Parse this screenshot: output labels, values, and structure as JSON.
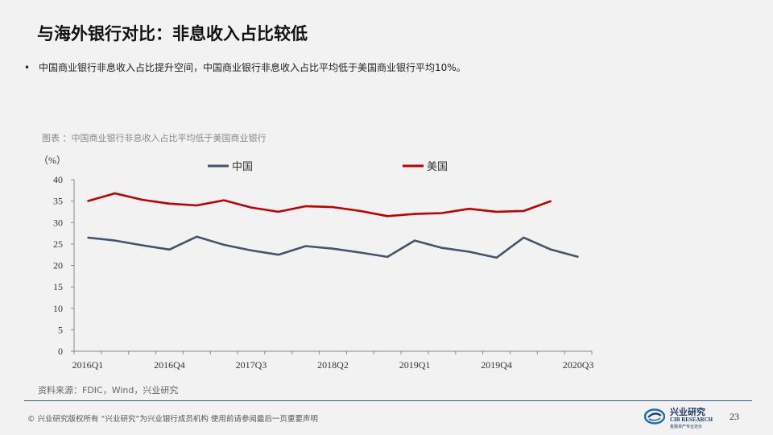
{
  "slide": {
    "title": "与海外银行对比：非息收入占比较低",
    "bullet": "中国商业银行非息收入占比提升空间，中国商业银行非息收入占比平均低于美国商业银行平均10%。",
    "chart_caption": "图表 ：中国商业银行非息收入占比平均低于美国商业银行",
    "source": "资料来源：FDIC，Wind，兴业研究",
    "footer": "©  兴业研究版权所有    “兴业研究”为兴业银行成员机构    使用前请参阅最后一页重要声明",
    "logo_cn": "兴业研究",
    "logo_en": "CIB RESEARCH",
    "logo_tag": "金融资产专业定价",
    "page_number": "23",
    "colors": {
      "china": "#44546a",
      "usa": "#c00000",
      "footer_line": "#3a5a8a"
    }
  },
  "chart_data": {
    "type": "line",
    "unit_label": "（%）",
    "ylim": [
      0,
      40
    ],
    "yticks": [
      0,
      5,
      10,
      15,
      20,
      25,
      30,
      35,
      40
    ],
    "x": [
      "2016Q1",
      "2016Q2",
      "2016Q3",
      "2016Q4",
      "2017Q1",
      "2017Q2",
      "2017Q3",
      "2017Q4",
      "2018Q1",
      "2018Q2",
      "2018Q3",
      "2018Q4",
      "2019Q1",
      "2019Q2",
      "2019Q3",
      "2019Q4",
      "2020Q1",
      "2020Q2",
      "2020Q3"
    ],
    "xtick_labels": [
      "2016Q1",
      "2016Q4",
      "2017Q3",
      "2018Q2",
      "2019Q1",
      "2019Q4",
      "2020Q3"
    ],
    "xtick_indices": [
      0,
      3,
      6,
      9,
      12,
      15,
      18
    ],
    "legend_position": "top",
    "series": [
      {
        "name": "中国",
        "color": "#44546a",
        "values": [
          26.5,
          25.8,
          24.7,
          23.7,
          26.7,
          24.8,
          23.5,
          22.5,
          24.5,
          23.9,
          23.0,
          22.0,
          25.8,
          24.1,
          23.2,
          21.8,
          26.5,
          23.7,
          22.0
        ]
      },
      {
        "name": "美国",
        "color": "#c00000",
        "values": [
          35.0,
          36.8,
          35.3,
          34.4,
          34.0,
          35.2,
          33.5,
          32.5,
          33.8,
          33.6,
          32.7,
          31.5,
          32.0,
          32.2,
          33.2,
          32.5,
          32.7,
          35.0,
          null
        ]
      }
    ]
  }
}
